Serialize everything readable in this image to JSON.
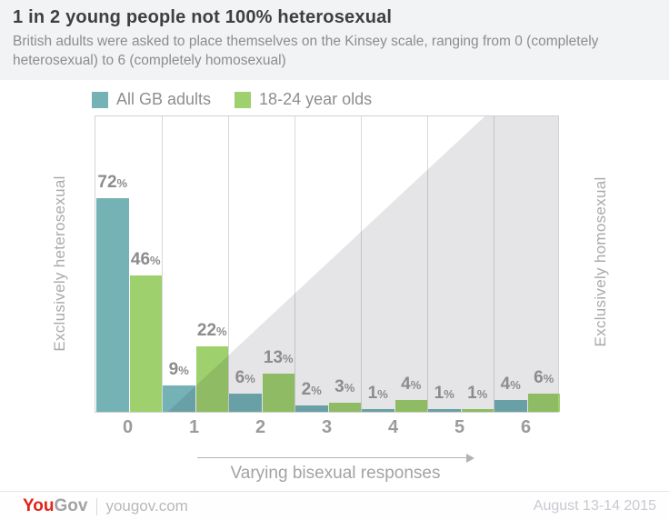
{
  "header": {
    "title": "1 in 2 young people not 100% heterosexual",
    "subtitle": "British adults were asked to place themselves on the Kinsey scale, ranging from 0 (completely heterosexual) to 6 (completely homosexual)"
  },
  "legend": [
    {
      "label": "All GB adults",
      "color": "#74b2b6"
    },
    {
      "label": "18-24 year olds",
      "color": "#9ed06e"
    }
  ],
  "chart_data": {
    "type": "bar",
    "categories": [
      "0",
      "1",
      "2",
      "3",
      "4",
      "5",
      "6"
    ],
    "series": [
      {
        "name": "All GB adults",
        "color": "#74b2b6",
        "values": [
          72,
          9,
          6,
          2,
          1,
          1,
          4
        ]
      },
      {
        "name": "18-24 year olds",
        "color": "#9ed06e",
        "values": [
          46,
          22,
          13,
          3,
          4,
          1,
          6
        ]
      }
    ],
    "unit": "%",
    "ylim": [
      0,
      100
    ],
    "grid": "vertical-only",
    "legend_position": "top",
    "left_axis_label": "Exclusively heterosexual",
    "right_axis_label": "Exclusively homosexual",
    "arrow_caption": "Varying bisexual responses",
    "overlay_note": "light gray triangle shading rising from bottom-left (category 1) to top-right (category 6)",
    "overlay_color": "#e5e5e8"
  },
  "footer": {
    "brand_you": "You",
    "brand_gov": "Gov",
    "site": "yougov.com",
    "date": "August 13-14 2015"
  },
  "colors": {
    "header_bg": "#f2f3f5",
    "teal": "#74b2b6",
    "green": "#9ed06e",
    "shade": "#e5e5e8",
    "gridline": "#d9d9d9",
    "brand_red": "#e2231a"
  }
}
